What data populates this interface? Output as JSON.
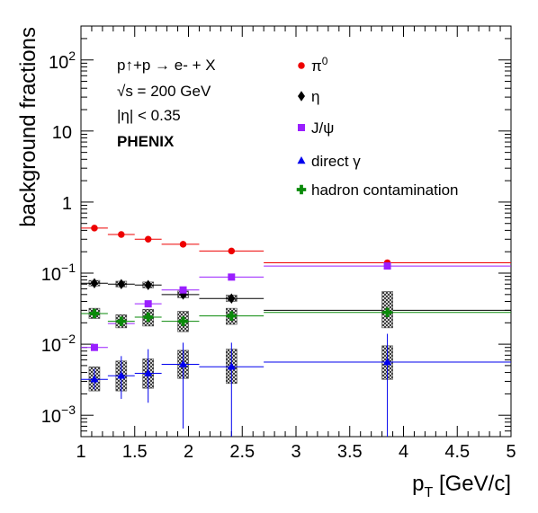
{
  "chart_data": {
    "type": "scatter",
    "ylog": true,
    "xlim": [
      1,
      5
    ],
    "ylim": [
      0.0005,
      300
    ],
    "xlabel_main": "p",
    "xlabel_sub": "T",
    "xlabel_rest": " [GeV/c]",
    "ylabel": "background fractions",
    "x_ticks": [
      "1",
      "1.5",
      "2",
      "2.5",
      "3",
      "3.5",
      "4",
      "4.5",
      "5"
    ],
    "annotations": {
      "process": "p↑+p → e- + X",
      "energy": "√s = 200 GeV",
      "eta_cut": "|η| < 0.35",
      "experiment": "PHENIX"
    },
    "series": [
      {
        "name": "π0",
        "color": "#ee0000",
        "marker": "circle",
        "points": [
          {
            "x": 1.125,
            "xlo": 1.0,
            "xhi": 1.25,
            "y": 0.43
          },
          {
            "x": 1.375,
            "xlo": 1.25,
            "xhi": 1.5,
            "y": 0.35
          },
          {
            "x": 1.625,
            "xlo": 1.5,
            "xhi": 1.75,
            "y": 0.3
          },
          {
            "x": 1.95,
            "xlo": 1.75,
            "xhi": 2.1,
            "y": 0.255
          },
          {
            "x": 2.4,
            "xlo": 2.1,
            "xhi": 2.7,
            "y": 0.205
          },
          {
            "x": 3.85,
            "xlo": 2.7,
            "xhi": 5.0,
            "y": 0.14
          }
        ]
      },
      {
        "name": "η",
        "color": "#000000",
        "marker": "diamond",
        "points": [
          {
            "x": 1.125,
            "xlo": 1.0,
            "xhi": 1.25,
            "y": 0.072,
            "sys": [
              0.066,
              0.079
            ]
          },
          {
            "x": 1.375,
            "xlo": 1.25,
            "xhi": 1.5,
            "y": 0.07,
            "sys": [
              0.064,
              0.077
            ]
          },
          {
            "x": 1.625,
            "xlo": 1.5,
            "xhi": 1.75,
            "y": 0.068,
            "sys": [
              0.062,
              0.075
            ]
          },
          {
            "x": 1.95,
            "xlo": 1.75,
            "xhi": 2.1,
            "y": 0.05,
            "sys": [
              0.045,
              0.056
            ]
          },
          {
            "x": 2.4,
            "xlo": 2.1,
            "xhi": 2.7,
            "y": 0.044,
            "sys": [
              0.04,
              0.049
            ]
          },
          {
            "x": 3.85,
            "xlo": 2.7,
            "xhi": 5.0,
            "y": 0.03,
            "sys": [
              0.026,
              0.035
            ]
          }
        ]
      },
      {
        "name": "J/ψ",
        "color": "#9a1fff",
        "marker": "square",
        "points": [
          {
            "x": 1.125,
            "xlo": 1.0,
            "xhi": 1.25,
            "y": 0.009
          },
          {
            "x": 1.375,
            "xlo": 1.25,
            "xhi": 1.5,
            "y": 0.0195
          },
          {
            "x": 1.625,
            "xlo": 1.5,
            "xhi": 1.75,
            "y": 0.037
          },
          {
            "x": 1.95,
            "xlo": 1.75,
            "xhi": 2.1,
            "y": 0.058
          },
          {
            "x": 2.4,
            "xlo": 2.1,
            "xhi": 2.7,
            "y": 0.088
          },
          {
            "x": 3.85,
            "xlo": 2.7,
            "xhi": 5.0,
            "y": 0.126
          }
        ]
      },
      {
        "name": "direct γ",
        "color": "#0000ee",
        "marker": "triangle",
        "points": [
          {
            "x": 1.125,
            "xlo": 1.0,
            "xhi": 1.25,
            "y": 0.0032,
            "err": [
              0.0023,
              0.0045
            ],
            "sys": [
              0.0022,
              0.0048
            ]
          },
          {
            "x": 1.375,
            "xlo": 1.25,
            "xhi": 1.5,
            "y": 0.0036,
            "err": [
              0.0017,
              0.0068
            ],
            "sys": [
              0.0022,
              0.0058
            ]
          },
          {
            "x": 1.625,
            "xlo": 1.5,
            "xhi": 1.75,
            "y": 0.0039,
            "err": [
              0.0015,
              0.0085
            ],
            "sys": [
              0.0024,
              0.0062
            ]
          },
          {
            "x": 1.95,
            "xlo": 1.75,
            "xhi": 2.1,
            "y": 0.0052,
            "err": [
              0.00065,
              0.0105
            ],
            "sys": [
              0.0033,
              0.0082
            ]
          },
          {
            "x": 2.4,
            "xlo": 2.1,
            "xhi": 2.7,
            "y": 0.0048,
            "err": [
              0.0005,
              0.0105
            ],
            "sys": [
              0.0028,
              0.0085
            ]
          },
          {
            "x": 3.85,
            "xlo": 2.7,
            "xhi": 5.0,
            "y": 0.0056,
            "err": [
              0.0005,
              0.014
            ],
            "sys": [
              0.0032,
              0.0095
            ]
          }
        ]
      },
      {
        "name": "hadron contamination",
        "color": "#0a8a0a",
        "marker": "cross",
        "points": [
          {
            "x": 1.125,
            "xlo": 1.0,
            "xhi": 1.25,
            "y": 0.027,
            "sys": [
              0.023,
              0.032
            ]
          },
          {
            "x": 1.375,
            "xlo": 1.25,
            "xhi": 1.5,
            "y": 0.021,
            "sys": [
              0.017,
              0.026
            ]
          },
          {
            "x": 1.625,
            "xlo": 1.5,
            "xhi": 1.75,
            "y": 0.024,
            "sys": [
              0.018,
              0.031
            ]
          },
          {
            "x": 1.95,
            "xlo": 1.75,
            "xhi": 2.1,
            "y": 0.021,
            "sys": [
              0.015,
              0.029
            ]
          },
          {
            "x": 2.4,
            "xlo": 2.1,
            "xhi": 2.7,
            "y": 0.025,
            "sys": [
              0.019,
              0.032
            ]
          },
          {
            "x": 3.85,
            "xlo": 2.7,
            "xhi": 5.0,
            "y": 0.028,
            "sys": [
              0.017,
              0.055
            ]
          }
        ]
      }
    ]
  }
}
